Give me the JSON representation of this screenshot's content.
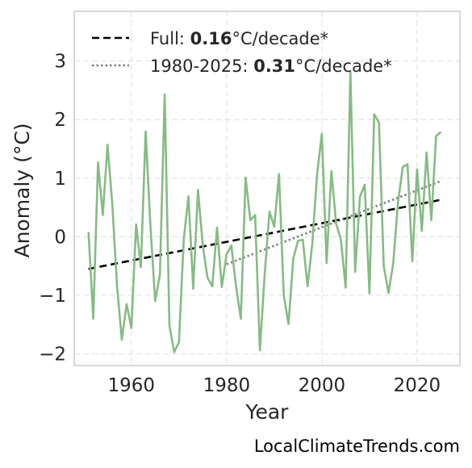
{
  "chart_data": {
    "type": "line",
    "xlabel": "Year",
    "ylabel": "Anomaly (°C)",
    "xlim": [
      1948,
      2029
    ],
    "ylim": [
      -2.2,
      3.85
    ],
    "xticks": [
      1960,
      1980,
      2000,
      2020
    ],
    "yticks": [
      -2,
      -1,
      0,
      1,
      2,
      3
    ],
    "xtick_labels": [
      "1960",
      "1980",
      "2000",
      "2020"
    ],
    "ytick_labels": [
      "−2",
      "−1",
      "0",
      "1",
      "2",
      "3"
    ],
    "grid": true,
    "legend_position": "top-left",
    "colors": {
      "series": "#86bb84",
      "full_trend": "#000000",
      "recent_trend": "#808080"
    },
    "series": [
      {
        "x": [
          1951,
          1952,
          1953,
          1954,
          1955,
          1956,
          1957,
          1958,
          1959,
          1960,
          1961,
          1962,
          1963,
          1964,
          1965,
          1966,
          1967,
          1968,
          1969,
          1970,
          1971,
          1972,
          1973,
          1974,
          1975,
          1976,
          1977,
          1978,
          1979,
          1980,
          1981,
          1982,
          1983,
          1984,
          1985,
          1986,
          1987,
          1988,
          1989,
          1990,
          1991,
          1992,
          1993,
          1994,
          1995,
          1996,
          1997,
          1998,
          1999,
          2000,
          2001,
          2002,
          2003,
          2004,
          2005,
          2006,
          2007,
          2008,
          2009,
          2010,
          2011,
          2012,
          2013,
          2014,
          2015,
          2016,
          2017,
          2018,
          2019,
          2020,
          2021,
          2022,
          2023,
          2024,
          2025
        ],
        "values": [
          0.08,
          -1.4,
          1.27,
          0.37,
          1.57,
          0.55,
          -0.85,
          -1.76,
          -1.15,
          -1.56,
          0.21,
          -0.52,
          1.8,
          0.2,
          -1.1,
          -0.65,
          2.43,
          -1.52,
          -1.97,
          -1.8,
          -0.05,
          0.69,
          -0.89,
          0.8,
          -0.15,
          -0.7,
          -0.85,
          0.16,
          -0.86,
          -0.3,
          -0.15,
          -0.85,
          -1.4,
          1.01,
          0.28,
          0.37,
          -1.94,
          -0.65,
          0.43,
          0.17,
          1.07,
          -1.0,
          -1.49,
          -0.37,
          -0.07,
          -0.05,
          -0.85,
          -0.11,
          1.06,
          1.76,
          -0.45,
          1.12,
          0.22,
          -0.05,
          -0.87,
          2.82,
          -0.6,
          0.68,
          0.89,
          -0.97,
          2.09,
          1.95,
          -0.5,
          -0.96,
          -0.45,
          0.59,
          1.19,
          1.24,
          -0.42,
          1.15,
          0.1,
          1.44,
          0.28,
          1.72,
          1.79
        ]
      }
    ],
    "trends": [
      {
        "label_prefix": "Full: ",
        "rate": "0.16",
        "label_suffix": "°C/decade*",
        "x": [
          1951,
          2025
        ],
        "y": [
          -0.55,
          0.63
        ]
      },
      {
        "label_prefix": "1980-2025: ",
        "rate": "0.31",
        "label_suffix": "°C/decade*",
        "x": [
          1980,
          2025
        ],
        "y": [
          -0.47,
          0.95
        ]
      }
    ]
  },
  "watermark": "LocalClimateTrends.com"
}
